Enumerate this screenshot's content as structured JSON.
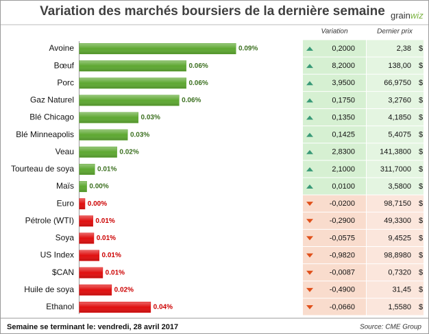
{
  "title": "Variation des marchés boursiers de la dernière semaine",
  "logo": [
    "grain",
    "wiz"
  ],
  "chart_data": {
    "type": "bar",
    "orientation": "horizontal",
    "categories": [
      "Avoine",
      "Bœuf",
      "Porc",
      "Gaz Naturel",
      "Blé Chicago",
      "Blé Minneapolis",
      "Veau",
      "Tourteau de soya",
      "Maïs",
      "Euro",
      "Pétrole (WTI)",
      "Soya",
      "US Index",
      "$CAN",
      "Huile de soya",
      "Ethanol"
    ],
    "values": [
      0.088,
      0.06,
      0.06,
      0.056,
      0.033,
      0.027,
      0.021,
      0.0085,
      0.004,
      0.003,
      0.0075,
      0.008,
      0.011,
      0.013,
      0.018,
      0.04
    ],
    "value_labels": [
      "0.09%",
      "0.06%",
      "0.06%",
      "0.06%",
      "0.03%",
      "0.03%",
      "0.02%",
      "0.01%",
      "0.00%",
      "0.00%",
      "0.01%",
      "0.01%",
      "0.01%",
      "0.01%",
      "0.02%",
      "0.04%"
    ],
    "colors": [
      "#5ea832",
      "#5ea832",
      "#5ea832",
      "#5ea832",
      "#5ea832",
      "#5ea832",
      "#5ea832",
      "#5ea832",
      "#5ea832",
      "#e01010",
      "#e01010",
      "#e01010",
      "#e01010",
      "#e01010",
      "#e01010",
      "#e01010"
    ]
  },
  "table": {
    "headers": [
      "Variation",
      "Dernier prix"
    ],
    "currency": "$",
    "rows": [
      [
        "0,2000",
        "2,38"
      ],
      [
        "8,2000",
        "138,00"
      ],
      [
        "3,9500",
        "66,9750"
      ],
      [
        "0,1750",
        "3,2760"
      ],
      [
        "0,1350",
        "4,1850"
      ],
      [
        "0,1425",
        "5,4075"
      ],
      [
        "2,8300",
        "141,3800"
      ],
      [
        "2,1000",
        "311,7000"
      ],
      [
        "0,0100",
        "3,5800"
      ],
      [
        "-0,0200",
        "98,7150"
      ],
      [
        "-0,2900",
        "49,3300"
      ],
      [
        "-0,0575",
        "9,4525"
      ],
      [
        "-0,9820",
        "98,8980"
      ],
      [
        "-0,0087",
        "0,7320"
      ],
      [
        "-0,4900",
        "31,45"
      ],
      [
        "-0,0660",
        "1,5580"
      ]
    ]
  },
  "footer": {
    "left": "Semaine se terminant le: vendredi, 28 avril 2017",
    "right": "Source: CME Group"
  }
}
